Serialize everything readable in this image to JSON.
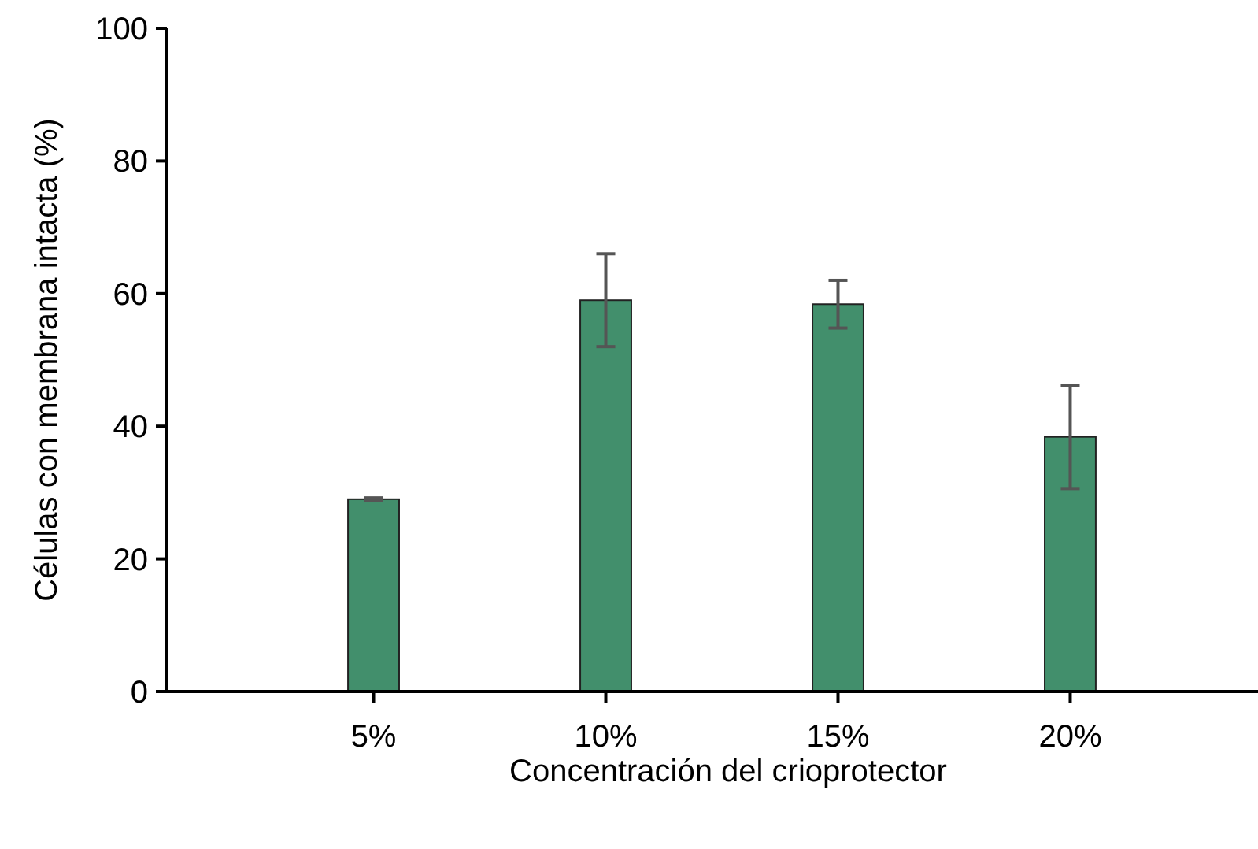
{
  "chart_data": {
    "type": "bar",
    "xlabel": "Concentración del crioprotector",
    "ylabel": "Células con membrana intacta (%)",
    "categories": [
      "5%",
      "10%",
      "15%",
      "20%"
    ],
    "values": [
      29,
      59,
      58.4,
      38.4
    ],
    "errors": [
      0.2,
      7,
      3.6,
      7.8
    ],
    "color": "#428f6c",
    "ylim": [
      0,
      100
    ],
    "yticks": [
      0,
      20,
      40,
      60,
      80,
      100
    ],
    "grid": false
  }
}
